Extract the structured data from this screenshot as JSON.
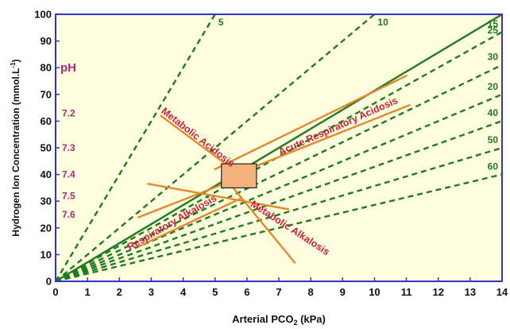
{
  "chart_data": {
    "type": "line",
    "xlabel": "Arterial PCO",
    "xlabel_sub": "2",
    "xlabel_unit": " (kPa)",
    "ylabel": "Hydrogen Ion Concentration (mmol.L",
    "ylabel_sup": "-1",
    "ylabel_end": ")",
    "xlim": [
      0,
      14
    ],
    "ylim": [
      0,
      100
    ],
    "x_ticks": [
      "0",
      "1",
      "2",
      "3",
      "4",
      "5",
      "6",
      "7",
      "8",
      "9",
      "10",
      "11",
      "12",
      "13",
      "14"
    ],
    "y_ticks": [
      "0",
      "10",
      "20",
      "30",
      "40",
      "50",
      "60",
      "70",
      "80",
      "90",
      "100"
    ],
    "grid": false,
    "colors": {
      "background": "#FFFFE0",
      "frame": "#3333CC",
      "isobar": "#1E7B1E",
      "band": "#E8862A",
      "label": "#CC1F3A",
      "ph": "#B0287A",
      "normal_box": "#F2B27A"
    },
    "isobars": [
      {
        "label": "5",
        "slope": 20.0
      },
      {
        "label": "10",
        "slope": 10.0
      },
      {
        "label": "15",
        "slope": 6.67
      },
      {
        "label": "20",
        "slope": 5.0
      },
      {
        "label": "25",
        "slope": 7.14
      },
      {
        "label": "30",
        "slope": 5.79
      },
      {
        "label": "40",
        "slope": 4.29
      },
      {
        "label": "50",
        "slope": 3.57
      },
      {
        "label": "60",
        "slope": 2.86
      }
    ],
    "solid_isobar_label": "25",
    "ph_title": "pH",
    "ph_labels": [
      {
        "label": "7.2",
        "y": 63
      },
      {
        "label": "7.3",
        "y": 50
      },
      {
        "label": "7.4",
        "y": 40
      },
      {
        "label": "7.5",
        "y": 32
      },
      {
        "label": "7.6",
        "y": 25
      }
    ],
    "bands": [
      {
        "name": "Metabolic Acidosis",
        "lines": [
          [
            [
              3.3,
              62
            ],
            [
              6.0,
              38
            ]
          ],
          [
            [
              2.9,
              36.5
            ],
            [
              7.3,
              27
            ]
          ]
        ]
      },
      {
        "name": "Acute Respiratory Acidosis",
        "lines": [
          [
            [
              5.0,
              42
            ],
            [
              11.0,
              77
            ]
          ],
          [
            [
              5.2,
              38
            ],
            [
              11.1,
              66
            ]
          ]
        ]
      },
      {
        "name": "Respiratory Alkalosis",
        "lines": [
          [
            [
              2.6,
              24
            ],
            [
              5.6,
              38
            ]
          ],
          [
            [
              2.6,
              13
            ],
            [
              5.8,
              31
            ]
          ]
        ]
      },
      {
        "name": "Metabolic Alkalosis",
        "lines": [
          [
            [
              5.5,
              36
            ],
            [
              7.5,
              7
            ]
          ]
        ]
      }
    ],
    "annotations": [
      {
        "text": "Metabolic Acidosis",
        "x": 4.4,
        "y": 53,
        "angle": 38
      },
      {
        "text": "Acute Respiratory Acidosis",
        "x": 8.9,
        "y": 57,
        "angle": -24
      },
      {
        "text": "Respiratory Alkalosis",
        "x": 3.7,
        "y": 21,
        "angle": -30
      },
      {
        "text": "Metabolic Alkalosis",
        "x": 7.3,
        "y": 19,
        "angle": 33
      }
    ],
    "normal_box": {
      "x": [
        5.2,
        6.3
      ],
      "y": [
        35,
        44
      ]
    }
  }
}
